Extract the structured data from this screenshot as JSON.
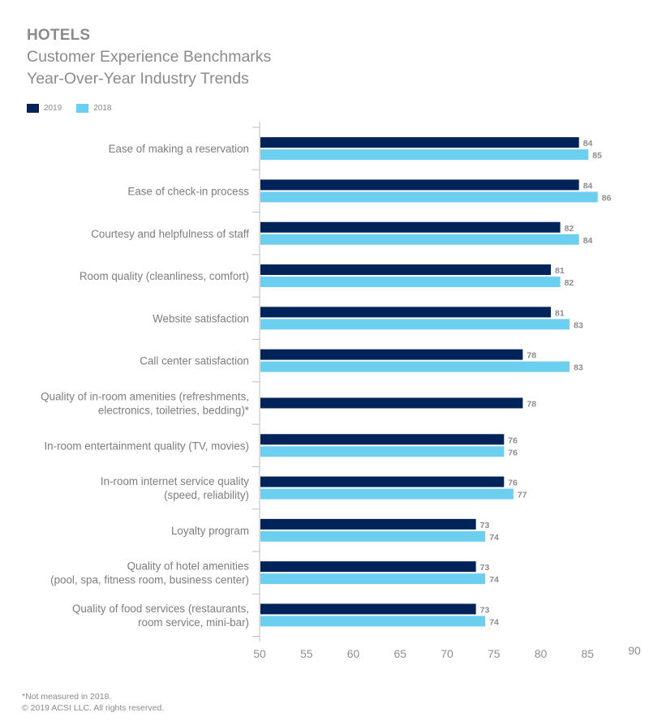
{
  "chart_data": {
    "type": "bar",
    "orientation": "horizontal",
    "title": "HOTELS",
    "subtitle": "Customer Experience Benchmarks",
    "subtitle2": "Year-Over-Year Industry Trends",
    "xlabel": "",
    "ylabel": "",
    "xlim": [
      50,
      90
    ],
    "xticks": [
      50,
      55,
      60,
      65,
      70,
      75,
      80,
      85,
      90
    ],
    "grid": false,
    "legend_position": "top-left",
    "categories": [
      [
        "Ease of making a reservation"
      ],
      [
        "Ease of check-in process"
      ],
      [
        "Courtesy and helpfulness of staff"
      ],
      [
        "Room quality (cleanliness, comfort)"
      ],
      [
        "Website satisfaction"
      ],
      [
        "Call center satisfaction"
      ],
      [
        "Quality of in-room amenities (refreshments,",
        "electronics, toiletries, bedding)*"
      ],
      [
        "In-room entertainment quality (TV, movies)"
      ],
      [
        "In-room internet service quality",
        "(speed, reliability)"
      ],
      [
        "Loyalty program"
      ],
      [
        "Quality of hotel amenities",
        "(pool, spa, fitness room, business center)"
      ],
      [
        "Quality of food services (restaurants,",
        "room service, mini-bar)"
      ]
    ],
    "series": [
      {
        "name": "2019",
        "color": "#00245a",
        "values": [
          84,
          84,
          82,
          81,
          81,
          78,
          78,
          76,
          76,
          73,
          73,
          73
        ]
      },
      {
        "name": "2018",
        "color": "#6dcff0",
        "values": [
          85,
          86,
          84,
          82,
          83,
          83,
          null,
          76,
          77,
          74,
          74,
          74
        ]
      }
    ]
  },
  "footnotes": {
    "note": "*Not measured in 2018.",
    "copyright": "© 2019 ACSI LLC. All rights reserved."
  }
}
